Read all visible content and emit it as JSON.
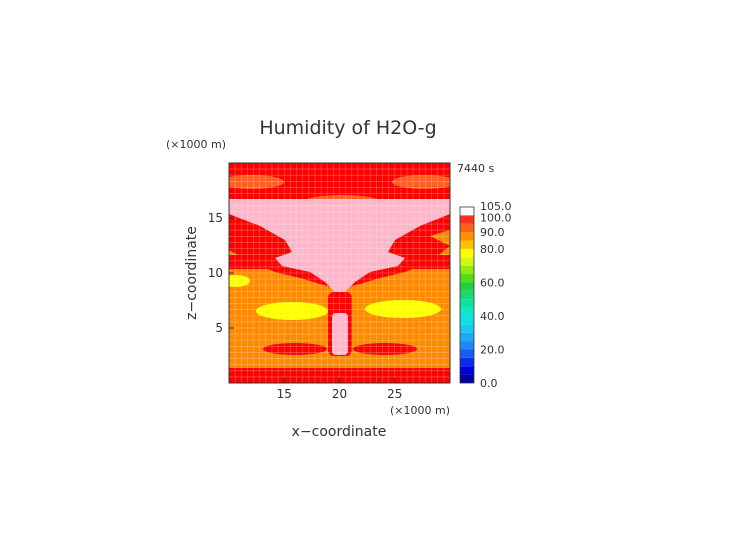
{
  "chart_data": {
    "type": "heatmap",
    "title": "Humidity of H2O-g",
    "time_label": "7440 s",
    "xlabel": "x−coordinate",
    "ylabel": "z−coordinate",
    "x_unit": "(×1000 m)",
    "y_unit": "(×1000 m)",
    "xlim": [
      10,
      30
    ],
    "ylim": [
      0,
      20
    ],
    "x_ticks": [
      "15",
      "20",
      "25"
    ],
    "y_ticks": [
      "5",
      "10",
      "15"
    ],
    "grid": true,
    "colorbar": {
      "range": [
        0,
        105
      ],
      "labels": [
        "0.0",
        "20.0",
        "40.0",
        "60.0",
        "80.0",
        "90.0",
        "100.0",
        "105.0"
      ],
      "levels": [
        {
          "from": 0,
          "to": 5,
          "color": "#0000a0"
        },
        {
          "from": 5,
          "to": 10,
          "color": "#0000d8"
        },
        {
          "from": 10,
          "to": 15,
          "color": "#0a2cf0"
        },
        {
          "from": 15,
          "to": 20,
          "color": "#1a5cf6"
        },
        {
          "from": 20,
          "to": 25,
          "color": "#1e88f8"
        },
        {
          "from": 25,
          "to": 30,
          "color": "#20a8f6"
        },
        {
          "from": 30,
          "to": 35,
          "color": "#18c8f0"
        },
        {
          "from": 35,
          "to": 40,
          "color": "#10e0e6"
        },
        {
          "from": 40,
          "to": 45,
          "color": "#10e6c8"
        },
        {
          "from": 45,
          "to": 50,
          "color": "#10e0a0"
        },
        {
          "from": 50,
          "to": 55,
          "color": "#18d878"
        },
        {
          "from": 55,
          "to": 60,
          "color": "#20d040"
        },
        {
          "from": 60,
          "to": 65,
          "color": "#50dc18"
        },
        {
          "from": 65,
          "to": 70,
          "color": "#90ec10"
        },
        {
          "from": 70,
          "to": 75,
          "color": "#d0f810"
        },
        {
          "from": 75,
          "to": 80,
          "color": "#ffff00"
        },
        {
          "from": 80,
          "to": 85,
          "color": "#ffc000"
        },
        {
          "from": 85,
          "to": 90,
          "color": "#ff9000"
        },
        {
          "from": 90,
          "to": 95,
          "color": "#ff6020"
        },
        {
          "from": 95,
          "to": 100,
          "color": "#ff3020"
        },
        {
          "from": 100,
          "to": 105,
          "color": "#ff0000"
        }
      ]
    },
    "regions": [
      {
        "name": "background",
        "value": 94
      },
      {
        "name": "top-band",
        "value": 101
      },
      {
        "name": "upper-blob-left",
        "value": 90
      },
      {
        "name": "upper-blob-mid",
        "value": 90
      },
      {
        "name": "upper-blob-right",
        "value": 90
      },
      {
        "name": "anvil-band",
        "value": 101
      },
      {
        "name": "anvil-core",
        "value": 104
      },
      {
        "name": "mid-band",
        "value": 101
      },
      {
        "name": "yellow-left-edge",
        "value": 78
      },
      {
        "name": "yellow-left",
        "value": 78
      },
      {
        "name": "yellow-right",
        "value": 78
      },
      {
        "name": "lower-red-left",
        "value": 101
      },
      {
        "name": "lower-red-right",
        "value": 101
      },
      {
        "name": "updraft-core",
        "value": 104
      },
      {
        "name": "bottom-band",
        "value": 101
      }
    ]
  }
}
